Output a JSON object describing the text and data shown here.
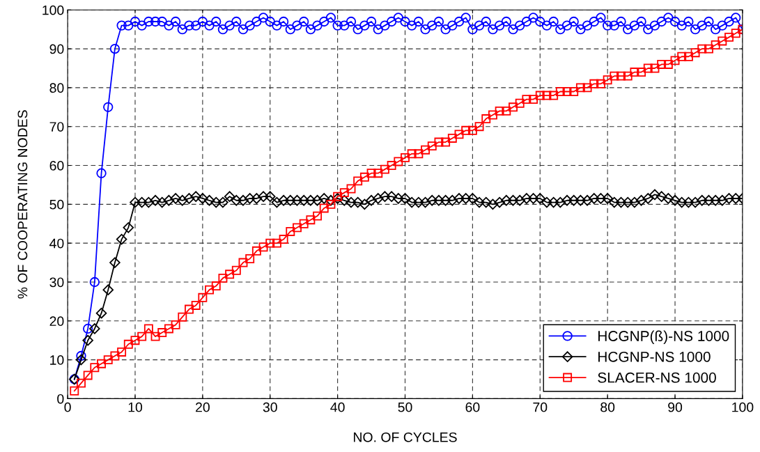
{
  "chart_data": {
    "type": "line",
    "xlabel": "NO. OF CYCLES",
    "ylabel": "% OF COOPERATING NODES",
    "x": [
      1,
      2,
      3,
      4,
      5,
      6,
      7,
      8,
      9,
      10,
      11,
      12,
      13,
      14,
      15,
      16,
      17,
      18,
      19,
      20,
      21,
      22,
      23,
      24,
      25,
      26,
      27,
      28,
      29,
      30,
      31,
      32,
      33,
      34,
      35,
      36,
      37,
      38,
      39,
      40,
      41,
      42,
      43,
      44,
      45,
      46,
      47,
      48,
      49,
      50,
      51,
      52,
      53,
      54,
      55,
      56,
      57,
      58,
      59,
      60,
      61,
      62,
      63,
      64,
      65,
      66,
      67,
      68,
      69,
      70,
      71,
      72,
      73,
      74,
      75,
      76,
      77,
      78,
      79,
      80,
      81,
      82,
      83,
      84,
      85,
      86,
      87,
      88,
      89,
      90,
      91,
      92,
      93,
      94,
      95,
      96,
      97,
      98,
      99,
      100
    ],
    "series": [
      {
        "name": "HCGNP(ß)-NS 1000",
        "color": "#0000ff",
        "marker": "circle",
        "values": [
          5,
          11,
          18,
          30,
          58,
          75,
          90,
          96,
          96,
          97,
          96,
          97,
          97,
          97,
          96,
          97,
          95,
          96,
          96,
          97,
          96,
          97,
          95,
          96,
          97,
          95,
          96,
          97,
          98,
          97,
          96,
          97,
          95,
          96,
          97,
          95,
          96,
          97,
          98,
          96,
          96,
          97,
          95,
          96,
          97,
          95,
          96,
          97,
          98,
          97,
          96,
          97,
          95,
          96,
          97,
          95,
          96,
          97,
          98,
          95,
          96,
          97,
          95,
          96,
          97,
          95,
          96,
          97,
          98,
          97,
          96,
          97,
          95,
          96,
          97,
          95,
          96,
          97,
          98,
          96,
          96,
          97,
          95,
          96,
          97,
          95,
          96,
          97,
          98,
          97,
          96,
          97,
          95,
          96,
          97,
          95,
          96,
          97,
          98,
          95
        ]
      },
      {
        "name": "HCGNP-NS 1000",
        "color": "#000000",
        "marker": "diamond",
        "values": [
          5,
          10,
          15,
          18,
          22,
          28,
          35,
          41,
          44,
          50.5,
          50.5,
          50.5,
          51,
          50.5,
          51,
          51.5,
          51,
          51.5,
          52,
          51.5,
          51,
          50.5,
          50.5,
          52,
          51,
          51,
          51.5,
          51.5,
          52,
          52,
          50.5,
          51,
          51,
          51,
          51,
          51,
          51,
          51.5,
          51,
          51.5,
          51,
          50.5,
          50.5,
          50,
          51,
          51.5,
          52,
          52,
          51.5,
          51.5,
          50.5,
          50.5,
          50.5,
          51,
          51,
          51,
          51,
          51.5,
          51.5,
          51.5,
          50.5,
          50.5,
          50,
          50.5,
          51,
          51,
          51,
          51.5,
          51.5,
          51.5,
          50.5,
          50.5,
          50.5,
          51,
          51,
          51,
          51,
          51.5,
          51.5,
          51.5,
          50.5,
          50.5,
          50.5,
          50.5,
          51,
          51.5,
          52.5,
          52,
          51.5,
          51,
          50.5,
          50.5,
          50.5,
          51,
          51,
          51,
          51,
          51.5,
          51.5,
          51.5
        ]
      },
      {
        "name": "SLACER-NS 1000",
        "color": "#ff0000",
        "marker": "square",
        "values": [
          2,
          4,
          6,
          8,
          9,
          10,
          11,
          12,
          14,
          15,
          16,
          18,
          16,
          17,
          18,
          19,
          21,
          23,
          24,
          26,
          28,
          29,
          31,
          32,
          33,
          35,
          36,
          38,
          39,
          40,
          40,
          41,
          43,
          44,
          45,
          46,
          47,
          49,
          50,
          52,
          53,
          54,
          56,
          57,
          58,
          58,
          59,
          60,
          61,
          62,
          63,
          63,
          64,
          65,
          66,
          66,
          67,
          68,
          69,
          69,
          70,
          72,
          73,
          74,
          74,
          75,
          76,
          77,
          77,
          78,
          78,
          78,
          79,
          79,
          79,
          80,
          80,
          81,
          81,
          82,
          83,
          83,
          83,
          84,
          84,
          85,
          85,
          86,
          86,
          87,
          88,
          88,
          89,
          90,
          90,
          91,
          92,
          93,
          94,
          95
        ]
      }
    ],
    "xlim": [
      0,
      100
    ],
    "xticks": [
      0,
      10,
      20,
      30,
      40,
      50,
      60,
      70,
      80,
      90,
      100
    ],
    "ylim": [
      0,
      100
    ],
    "yticks": [
      0,
      10,
      20,
      30,
      40,
      50,
      60,
      70,
      80,
      90,
      100
    ],
    "grid": true,
    "legend": "bottom right",
    "line_style": "solid"
  }
}
